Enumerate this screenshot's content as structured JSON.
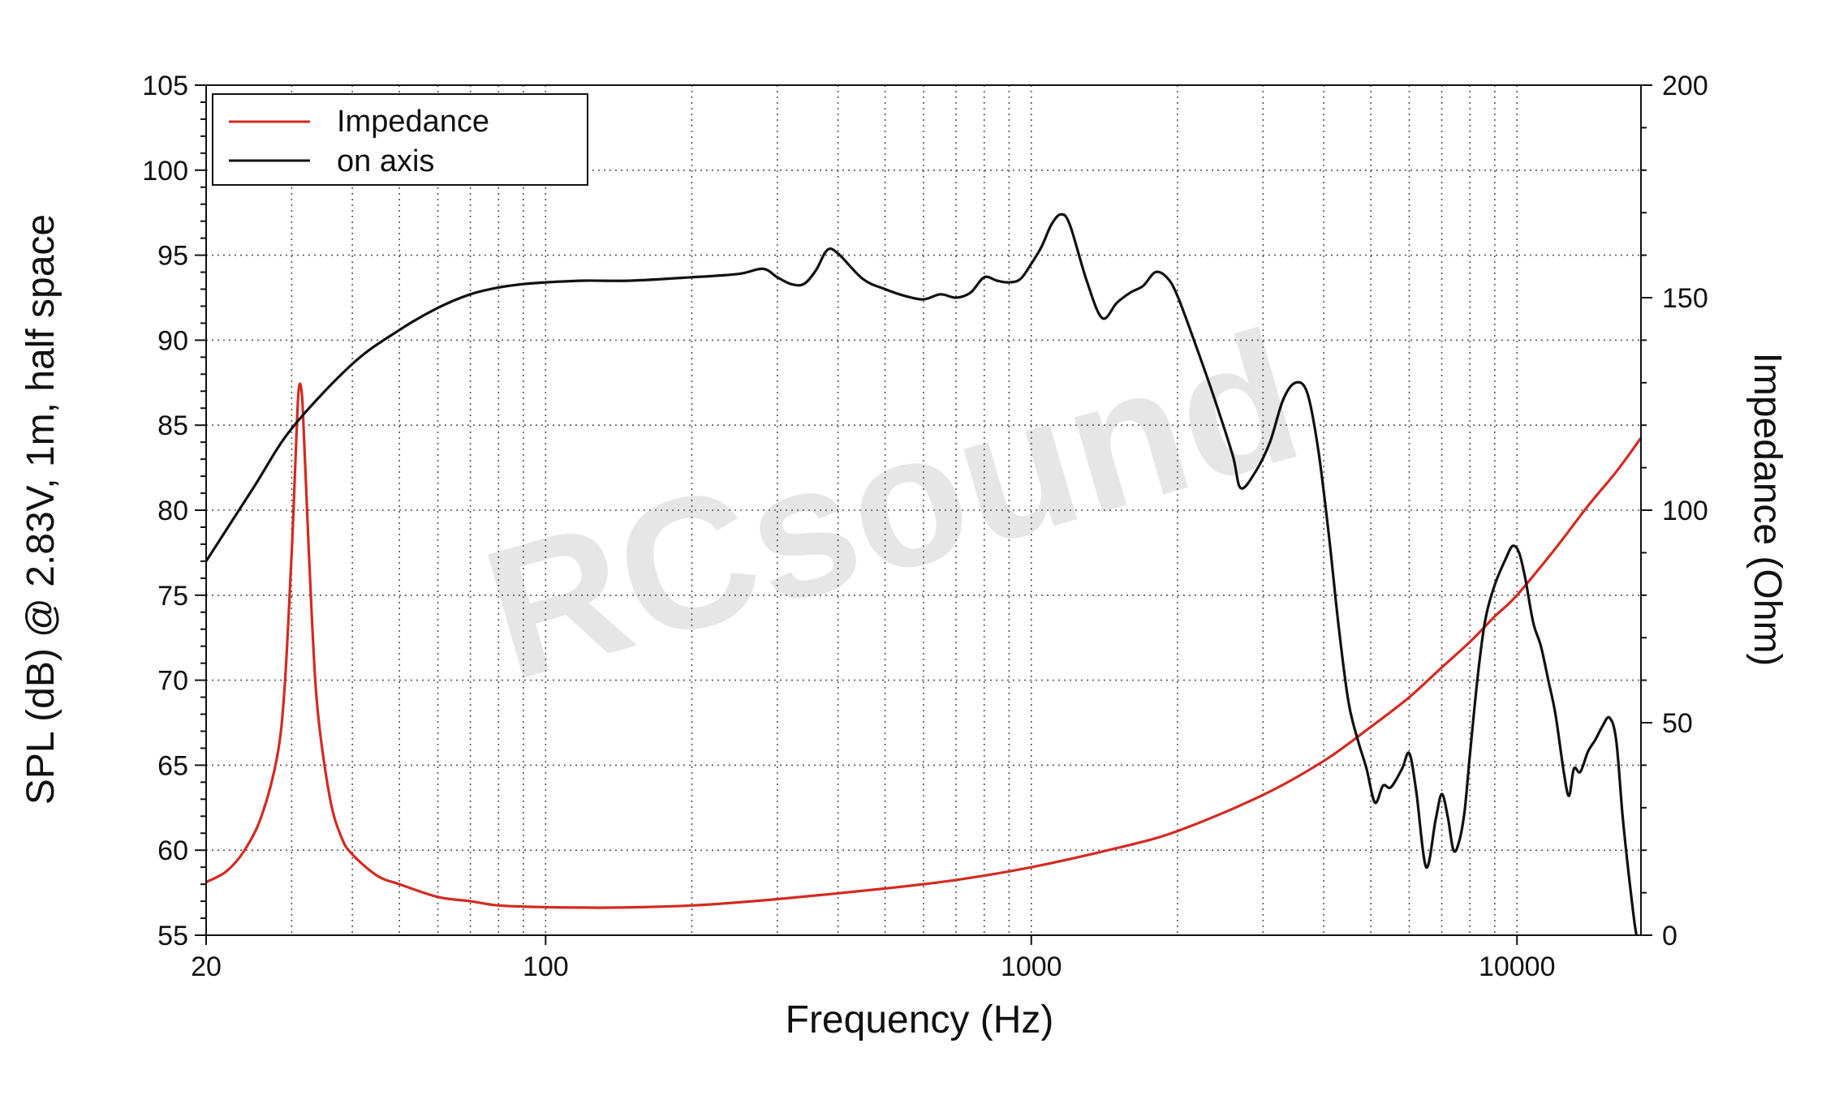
{
  "chart_data": {
    "type": "line",
    "xlabel": "Frequency (Hz)",
    "ylabel_left": "SPL (dB) @ 2.83V, 1m, half space",
    "ylabel_right": "Impedance (Ohm)",
    "x_scale": "log",
    "xlim": [
      20,
      18000
    ],
    "ylim_left": [
      55,
      105
    ],
    "ylim_right": [
      0,
      200
    ],
    "x_ticks": [
      20,
      100,
      1000,
      10000
    ],
    "x_tick_labels": [
      "20",
      "100",
      "1000",
      "10000"
    ],
    "y_ticks_left": [
      55,
      60,
      65,
      70,
      75,
      80,
      85,
      90,
      95,
      100,
      105
    ],
    "y_tick_labels_left": [
      "55",
      "60",
      "65",
      "70",
      "75",
      "80",
      "85",
      "90",
      "95",
      "100",
      "105"
    ],
    "y_ticks_right": [
      0,
      50,
      100,
      150,
      200
    ],
    "y_tick_labels_right": [
      "0",
      "50",
      "100",
      "150",
      "200"
    ],
    "grid": true,
    "legend_placement": "top-left",
    "watermark": "RCsound",
    "series": [
      {
        "name": "Impedance",
        "axis": "right",
        "color": "#d42a20",
        "x": [
          20,
          22,
          24,
          26,
          28,
          29,
          30,
          30.5,
          31,
          31.5,
          32,
          33,
          34,
          36,
          38,
          40,
          45,
          50,
          60,
          70,
          80,
          100,
          120,
          140,
          200,
          300,
          500,
          700,
          1000,
          1500,
          2000,
          3000,
          4000,
          5000,
          6000,
          7000,
          8000,
          9000,
          10000,
          12000,
          14000,
          16000,
          18000
        ],
        "y": [
          12.5,
          15,
          20,
          28,
          42,
          58,
          90,
          110,
          128,
          127,
          110,
          75,
          52,
          32,
          23,
          19,
          14,
          12,
          9,
          8,
          7,
          6.6,
          6.5,
          6.5,
          7,
          8.5,
          11,
          13,
          16,
          20.5,
          24.5,
          33,
          41,
          49,
          56,
          63,
          69,
          75,
          80,
          91,
          101,
          109,
          117
        ]
      },
      {
        "name": "on axis",
        "axis": "left",
        "color": "#111111",
        "x": [
          20,
          25,
          30,
          40,
          50,
          60,
          70,
          80,
          90,
          100,
          120,
          150,
          200,
          250,
          280,
          300,
          320,
          340,
          360,
          380,
          400,
          450,
          500,
          550,
          600,
          650,
          700,
          750,
          800,
          850,
          900,
          950,
          1000,
          1050,
          1100,
          1150,
          1200,
          1300,
          1400,
          1500,
          1600,
          1700,
          1800,
          1900,
          2000,
          2200,
          2400,
          2600,
          2700,
          2900,
          3100,
          3300,
          3500,
          3700,
          3900,
          4100,
          4300,
          4500,
          4700,
          4900,
          5100,
          5300,
          5500,
          5800,
          6000,
          6200,
          6500,
          6800,
          7000,
          7200,
          7400,
          7600,
          7800,
          8000,
          8300,
          8600,
          9000,
          9500,
          9800,
          10100,
          10400,
          10800,
          11200,
          11600,
          12000,
          12500,
          12800,
          13100,
          13500,
          14000,
          14500,
          15000,
          15500,
          16000,
          16500,
          17000,
          17500,
          17800
        ],
        "y": [
          77,
          81.3,
          84.8,
          88.6,
          90.6,
          91.9,
          92.7,
          93.1,
          93.3,
          93.4,
          93.5,
          93.5,
          93.7,
          93.9,
          94.2,
          93.7,
          93.3,
          93.3,
          94.1,
          95.3,
          95.1,
          93.6,
          93.0,
          92.6,
          92.4,
          92.7,
          92.5,
          92.8,
          93.7,
          93.5,
          93.4,
          93.6,
          94.5,
          95.5,
          96.8,
          97.4,
          96.8,
          93.5,
          91.3,
          92.2,
          92.8,
          93.2,
          94.0,
          93.7,
          92.6,
          89.4,
          86.3,
          83.2,
          81.3,
          82.3,
          84.0,
          86.5,
          87.5,
          86.9,
          83.5,
          78.5,
          73.0,
          68.7,
          66.5,
          64.8,
          62.8,
          63.8,
          63.7,
          64.8,
          65.7,
          63.5,
          59.0,
          61.8,
          63.3,
          62.0,
          60.0,
          60.5,
          62.3,
          65.6,
          70.2,
          73.5,
          75.6,
          77.2,
          77.9,
          77.5,
          76.0,
          73.4,
          72.0,
          70.0,
          68.0,
          64.5,
          63.2,
          64.8,
          64.6,
          65.8,
          66.5,
          67.3,
          67.8,
          66.5,
          62.0,
          58.5,
          55.5,
          54.5
        ]
      }
    ]
  },
  "legend": {
    "items": [
      {
        "label": "Impedance",
        "color": "#d42a20"
      },
      {
        "label": "on axis",
        "color": "#111111"
      }
    ]
  }
}
